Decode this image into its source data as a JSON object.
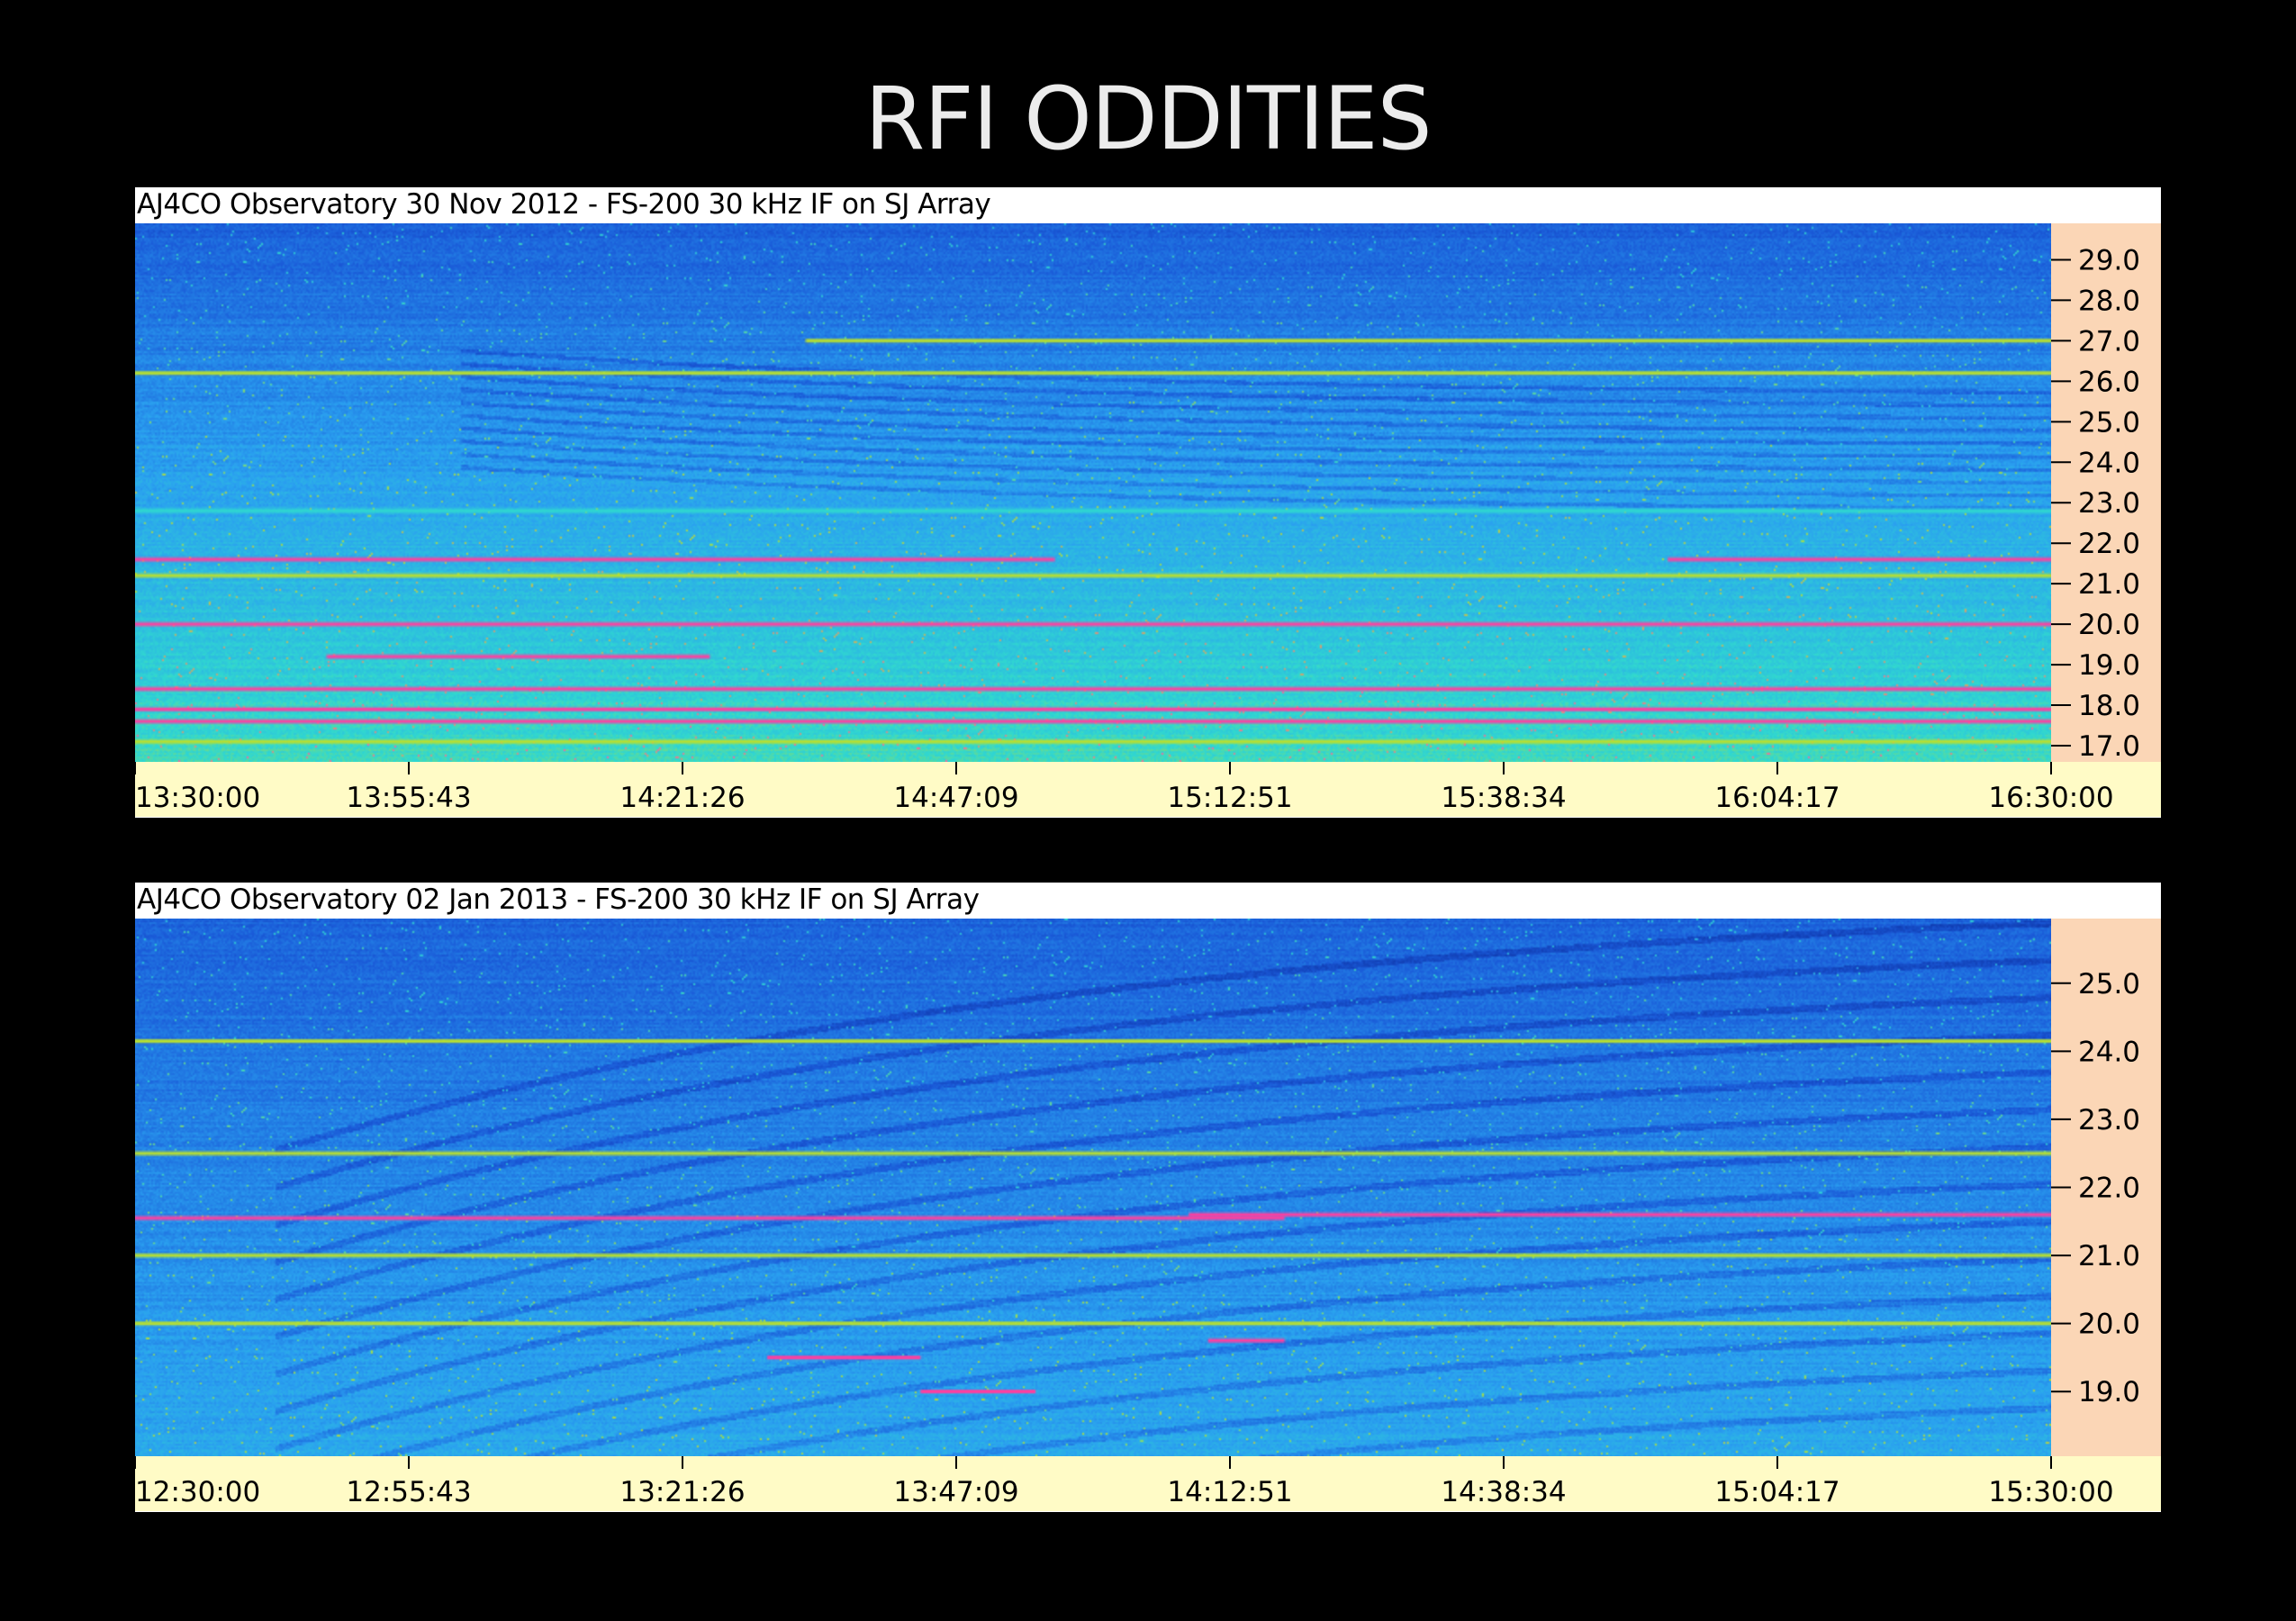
{
  "page": {
    "title": "RFI ODDITIES"
  },
  "chart_data": [
    {
      "type": "heatmap",
      "title": "AJ4CO Observatory 30 Nov 2012 - FS-200 30 kHz IF on SJ Array",
      "xlabel": "",
      "ylabel": "",
      "x_ticks": [
        "13:30:00",
        "13:55:43",
        "14:21:26",
        "14:47:09",
        "15:12:51",
        "15:38:34",
        "16:04:17",
        "16:30:00"
      ],
      "x_range": [
        "13:30:00",
        "16:30:00"
      ],
      "y_ticks": [
        29.0,
        28.0,
        27.0,
        26.0,
        25.0,
        24.0,
        23.0,
        22.0,
        21.0,
        20.0,
        19.0,
        18.0,
        17.0
      ],
      "y_tick_labels": [
        "29.0",
        "28.0",
        "27.0",
        "26.0",
        "25.0",
        "24.0",
        "23.0",
        "22.0",
        "21.0",
        "20.0",
        "19.0",
        "18.0",
        "17.0"
      ],
      "ylim": [
        16.6,
        29.9
      ],
      "colormap": [
        "#0a2a9a",
        "#1a5ad8",
        "#2aa0f0",
        "#30d8d0",
        "#b8e030",
        "#ff60a0"
      ],
      "lines": [
        {
          "y": 21.6,
          "x0": 0.0,
          "x1": 0.48,
          "color": "#ff3fa0"
        },
        {
          "y": 21.6,
          "x0": 0.8,
          "x1": 1.0,
          "color": "#ff3fa0"
        },
        {
          "y": 20.0,
          "x0": 0.0,
          "x1": 1.0,
          "color": "#ff3fa0"
        },
        {
          "y": 18.4,
          "x0": 0.0,
          "x1": 1.0,
          "color": "#ff3fa0"
        },
        {
          "y": 17.9,
          "x0": 0.0,
          "x1": 1.0,
          "color": "#ff3fa0"
        },
        {
          "y": 17.6,
          "x0": 0.0,
          "x1": 1.0,
          "color": "#ff3fa0"
        },
        {
          "y": 26.2,
          "x0": 0.0,
          "x1": 1.0,
          "color": "#b8e030"
        },
        {
          "y": 22.8,
          "x0": 0.0,
          "x1": 1.0,
          "color": "#30d8d0"
        },
        {
          "y": 21.2,
          "x0": 0.0,
          "x1": 1.0,
          "color": "#b8e030"
        },
        {
          "y": 17.1,
          "x0": 0.0,
          "x1": 1.0,
          "color": "#b8e030"
        },
        {
          "y": 19.2,
          "x0": 0.1,
          "x1": 0.3,
          "color": "#ff3fa0"
        },
        {
          "y": 27.0,
          "x0": 0.35,
          "x1": 1.0,
          "color": "#b8e030"
        }
      ],
      "sweeps": {
        "start_fraction": 0.17,
        "count": 10,
        "ylow": 22.6,
        "yhigh": 25.8
      }
    },
    {
      "type": "heatmap",
      "title": "AJ4CO Observatory 02 Jan 2013 - FS-200 30 kHz IF on SJ Array",
      "xlabel": "",
      "ylabel": "",
      "x_ticks": [
        "12:30:00",
        "12:55:43",
        "13:21:26",
        "13:47:09",
        "14:12:51",
        "14:38:34",
        "15:04:17",
        "15:30:00"
      ],
      "x_range": [
        "12:30:00",
        "15:30:00"
      ],
      "y_ticks": [
        25.0,
        24.0,
        23.0,
        22.0,
        21.0,
        20.0,
        19.0
      ],
      "y_tick_labels": [
        "25.0",
        "24.0",
        "23.0",
        "22.0",
        "21.0",
        "20.0",
        "19.0"
      ],
      "ylim": [
        18.05,
        25.95
      ],
      "colormap": [
        "#0a2a9a",
        "#1a5ad8",
        "#2aa0f0",
        "#30d8d0",
        "#b8e030",
        "#ff60a0"
      ],
      "lines": [
        {
          "y": 21.55,
          "x0": 0.0,
          "x1": 0.6,
          "color": "#ff3fa0"
        },
        {
          "y": 21.6,
          "x0": 0.55,
          "x1": 1.0,
          "color": "#ff3fa0"
        },
        {
          "y": 21.0,
          "x0": 0.0,
          "x1": 1.0,
          "color": "#b8e030"
        },
        {
          "y": 20.0,
          "x0": 0.0,
          "x1": 1.0,
          "color": "#b8e030"
        },
        {
          "y": 22.5,
          "x0": 0.0,
          "x1": 1.0,
          "color": "#b8e030"
        },
        {
          "y": 24.15,
          "x0": 0.0,
          "x1": 1.0,
          "color": "#b8e030"
        },
        {
          "y": 19.5,
          "x0": 0.33,
          "x1": 0.41,
          "color": "#ff3fa0"
        },
        {
          "y": 19.0,
          "x0": 0.41,
          "x1": 0.47,
          "color": "#ff3fa0"
        },
        {
          "y": 19.75,
          "x0": 0.56,
          "x1": 0.6,
          "color": "#ff3fa0"
        }
      ],
      "sweeps": {
        "start_fraction": 0.073,
        "count": 14,
        "ylow": 18.2,
        "yhigh": 25.9
      }
    }
  ]
}
